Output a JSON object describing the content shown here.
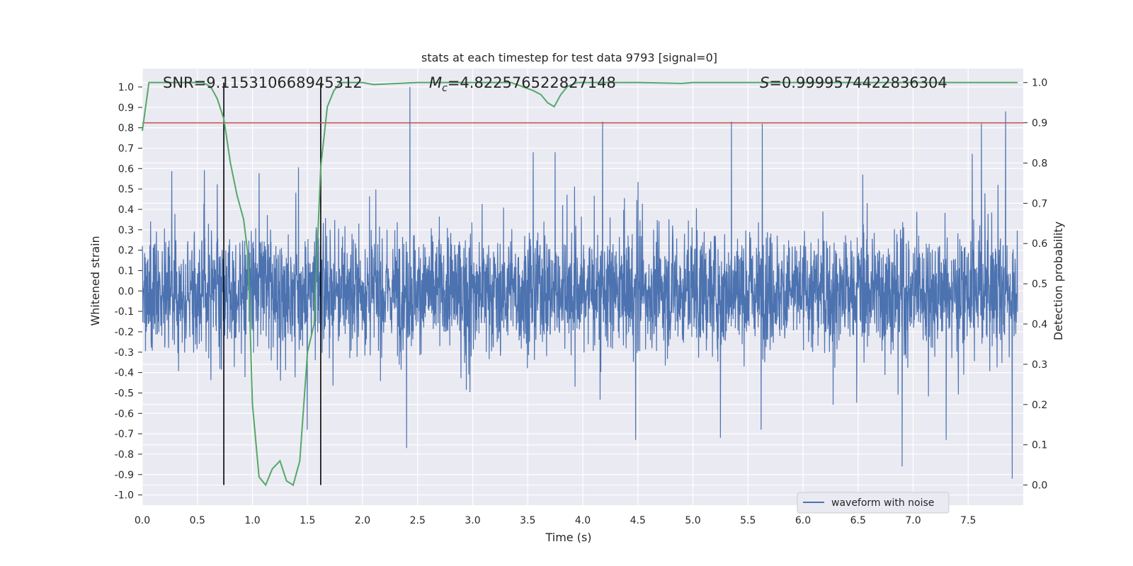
{
  "chart_data": {
    "type": "line",
    "title": "stats at each timestep for test data 9793 [signal=0]",
    "xlabel": "Time (s)",
    "ylabel_left": "Whitened strain",
    "ylabel_right": "Detection probability",
    "xlim": [
      0.0,
      8.0
    ],
    "ylim_left": [
      -1.05,
      1.09
    ],
    "ylim_right": [
      -0.05,
      1.0346
    ],
    "x_ticks": [
      "0.0",
      "0.5",
      "1.0",
      "1.5",
      "2.0",
      "2.5",
      "3.0",
      "3.5",
      "4.0",
      "4.5",
      "5.0",
      "5.5",
      "6.0",
      "6.5",
      "7.0",
      "7.5"
    ],
    "y_ticks_left": [
      "1.0",
      "0.9",
      "0.8",
      "0.7",
      "0.6",
      "0.5",
      "0.4",
      "0.3",
      "0.2",
      "0.1",
      "0.0",
      "-0.1",
      "-0.2",
      "-0.3",
      "-0.4",
      "-0.5",
      "-0.6",
      "-0.7",
      "-0.8",
      "-0.9",
      "-1.0"
    ],
    "y_ticks_right": [
      "1.0",
      "0.9",
      "0.8",
      "0.7",
      "0.6",
      "0.5",
      "0.4",
      "0.3",
      "0.2",
      "0.1",
      "0.0"
    ],
    "annotations": {
      "snr": "SNR=9.115310668945312",
      "mc_symbol": "M",
      "mc_sub": "c",
      "mc_value": "=4.822576522827148",
      "s_symbol": "S",
      "s_value": "=0.9999574422836304"
    },
    "threshold": {
      "axis": "right",
      "value": 0.9,
      "color": "#c44e52"
    },
    "vertical_lines": [
      0.74,
      1.62
    ],
    "series": [
      {
        "name": "waveform with noise",
        "axis": "left",
        "color": "#4c72b0",
        "note": "noise-like whitened strain trace sampled at ~2048 Hz; envelope approx ±0.6 with spikes to ±1.0",
        "spikes": [
          {
            "t": 2.43,
            "v": 1.0
          },
          {
            "t": 4.18,
            "v": 0.83
          },
          {
            "t": 5.35,
            "v": 0.83
          },
          {
            "t": 5.63,
            "v": 0.82
          },
          {
            "t": 7.84,
            "v": 0.88
          },
          {
            "t": 7.62,
            "v": 0.82
          },
          {
            "t": 2.4,
            "v": -0.77
          },
          {
            "t": 6.9,
            "v": -0.86
          },
          {
            "t": 7.9,
            "v": -0.92
          },
          {
            "t": 4.48,
            "v": -0.73
          },
          {
            "t": 7.3,
            "v": -0.73
          },
          {
            "t": 5.25,
            "v": -0.72
          }
        ]
      },
      {
        "name": "detection probability",
        "axis": "right",
        "color": "#55a868",
        "x": [
          0.0,
          0.06,
          0.13,
          0.25,
          0.4,
          0.55,
          0.62,
          0.68,
          0.74,
          0.8,
          0.86,
          0.92,
          0.96,
          1.0,
          1.06,
          1.12,
          1.18,
          1.25,
          1.31,
          1.37,
          1.43,
          1.5,
          1.56,
          1.62,
          1.68,
          1.74,
          1.8,
          2.0,
          2.1,
          2.5,
          3.0,
          3.35,
          3.45,
          3.55,
          3.62,
          3.68,
          3.74,
          3.8,
          3.86,
          3.95,
          4.1,
          4.5,
          4.9,
          5.0,
          5.5,
          6.0,
          7.0,
          7.95
        ],
        "y": [
          0.88,
          1.0,
          1.0,
          1.0,
          1.0,
          1.0,
          0.99,
          0.96,
          0.91,
          0.8,
          0.72,
          0.66,
          0.57,
          0.2,
          0.02,
          0.0,
          0.04,
          0.06,
          0.01,
          0.0,
          0.06,
          0.33,
          0.4,
          0.79,
          0.94,
          0.98,
          1.0,
          1.0,
          0.995,
          1.0,
          1.0,
          1.0,
          0.99,
          0.98,
          0.97,
          0.95,
          0.94,
          0.97,
          0.99,
          1.0,
          1.0,
          1.0,
          0.998,
          1.0,
          1.0,
          1.0,
          1.0,
          1.0
        ]
      }
    ],
    "legend": {
      "entries": [
        "waveform with noise"
      ],
      "placement": "lower-right"
    }
  }
}
